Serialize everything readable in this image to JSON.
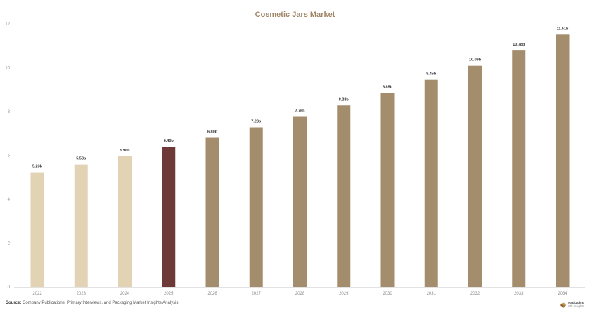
{
  "chart_data": {
    "type": "bar",
    "title": "Cosmetic Jars Market",
    "xlabel": "",
    "ylabel": "",
    "categories": [
      "2022",
      "2023",
      "2024",
      "2025",
      "2026",
      "2027",
      "2028",
      "2029",
      "2030",
      "2031",
      "2032",
      "2033",
      "2034"
    ],
    "values": [
      5.23,
      5.58,
      5.96,
      6.4,
      6.8,
      7.28,
      7.76,
      8.28,
      8.85,
      9.45,
      10.09,
      10.78,
      11.51
    ],
    "data_labels": [
      "5.23b",
      "5.58b",
      "5.96b",
      "6.40b",
      "6.80b",
      "7.28b",
      "7.76b",
      "8.28b",
      "8.85b",
      "9.45b",
      "10.09b",
      "10.78b",
      "11.51b"
    ],
    "bar_colors": [
      "#e3d3b5",
      "#e3d3b5",
      "#e3d3b5",
      "#6d3a38",
      "#a38d6d",
      "#a38d6d",
      "#a38d6d",
      "#a38d6d",
      "#a38d6d",
      "#a38d6d",
      "#a38d6d",
      "#a38d6d",
      "#a38d6d"
    ],
    "ylim": [
      0,
      12
    ],
    "yticks": [
      0,
      2,
      4,
      6,
      8,
      10,
      12
    ],
    "grid": false,
    "legend": "none"
  },
  "colors": {
    "title": "#a08566",
    "historic": "#e3d3b5",
    "base_year": "#6d3a38",
    "forecast": "#a38d6d"
  },
  "footer": {
    "source_label": "Source:",
    "source_text": "Company Publications, Primary Interviews, and Packaging Market Insights Analysis",
    "logo_name": "Packaging",
    "logo_sub": "Mk Insights",
    "logo_icon": "cube-logo-icon"
  }
}
